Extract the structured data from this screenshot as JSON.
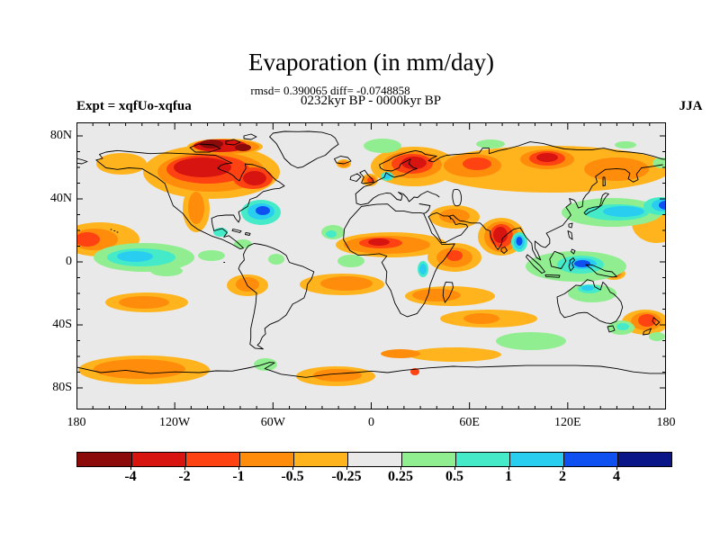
{
  "figure": {
    "title": "Evaporation (in mm/day)",
    "stats_line": "rmsd= 0.390065 diff= -0.0748858",
    "period_line": "0232kyr BP - 0000kyr BP",
    "experiment_label": "Expt = xqfUo-xqfua",
    "season_label": "JJA"
  },
  "axes": {
    "lat_labels": [
      {
        "label": "80N",
        "lat": 80
      },
      {
        "label": "40N",
        "lat": 40
      },
      {
        "label": "0",
        "lat": 0
      },
      {
        "label": "40S",
        "lat": -40
      },
      {
        "label": "80S",
        "lat": -80
      }
    ],
    "lon_labels": [
      {
        "label": "180",
        "lon": -180
      },
      {
        "label": "120W",
        "lon": -120
      },
      {
        "label": "60W",
        "lon": -60
      },
      {
        "label": "0",
        "lon": 0
      },
      {
        "label": "60E",
        "lon": 60
      },
      {
        "label": "120E",
        "lon": 120
      },
      {
        "label": "180",
        "lon": 180
      }
    ]
  },
  "map": {
    "background": "#e9e9e9",
    "coastline_color": "#000000",
    "frame_color": "#000000"
  },
  "colorbar": {
    "colors": [
      "#8b0a0a",
      "#d81410",
      "#ff4212",
      "#ff8c0a",
      "#ffb41e",
      "#e9e9e9",
      "#90ee90",
      "#45ebc8",
      "#29cdf0",
      "#0e50f0",
      "#0a1687"
    ],
    "boundary_labels": [
      "-4",
      "-2",
      "-1",
      "-0.5",
      "-0.25",
      "0.25",
      "0.5",
      "1",
      "2",
      "4"
    ]
  },
  "chart_data": {
    "type": "heatmap",
    "subtype": "filled-contour world map of anomalies, equirectangular projection",
    "title": "Evaporation (in mm/day)",
    "units": "mm/day",
    "season": "JJA",
    "experiment": "xqfUo-xqfua",
    "comparison": "0232kyr BP - 0000kyr BP",
    "rmsd": 0.390065,
    "diff": -0.0748858,
    "contour_levels": [
      -4,
      -2,
      -1,
      -0.5,
      -0.25,
      0.25,
      0.5,
      1,
      2,
      4
    ],
    "palette": [
      "#8b0a0a",
      "#d81410",
      "#ff4212",
      "#ff8c0a",
      "#ffb41e",
      "#e9e9e9",
      "#90ee90",
      "#45ebc8",
      "#29cdf0",
      "#0e50f0",
      "#0a1687"
    ],
    "lon_range": [
      -180,
      180
    ],
    "lat_range": [
      -90,
      90
    ],
    "x_tick_labels": [
      "180",
      "120W",
      "60W",
      "0",
      "60E",
      "120E",
      "180"
    ],
    "y_tick_labels": [
      "80N",
      "40N",
      "0",
      "40S",
      "80S"
    ],
    "legend_position": "bottom horizontal colorbar",
    "notable_negative_anomalies": [
      "Canada / Canadian Arctic (down to -2 and below)",
      "Scandinavia and northwest Russia (-1 to -2)",
      "broad Siberia band (-0.25 to -1)",
      "India (-1 to -2)",
      "Sahel band across North Africa (-0.5 to -2)",
      "Horn of Africa / Arabian Sea (-0.5 to -1)",
      "Middle East (-0.25 to -0.5)",
      "subtropical Northeast Pacific (-0.25 to -1)",
      "central US / Mexico band (-0.25 to -0.5)",
      "tropical South Atlantic band (-0.25 to -0.5)",
      "southern Indian Ocean bands (-0.25 to -0.5)",
      "Southern Ocean Pacific and Atlantic sectors (-0.25 to -0.5)",
      "Tasman Sea east of Australia (-0.5 to -1)",
      "United Kingdom spot (-0.5 to -1)"
    ],
    "notable_positive_anomalies": [
      "northwest Atlantic off US east coast (+0.5 to +2)",
      "equatorial central Pacific ITCZ (+0.25 to +1)",
      "East China Sea / Japan band (+0.5 to +2)",
      "Maritime Continent / Indonesia (+0.5 to +2)",
      "Bay of Bengal (+0.5 to +2)",
      "northern Australia (+0.25 to +1)",
      "mid-latitude south Indian Ocean (+0.25)",
      "Greenland Sea and Arctic coastal patches (+0.25)",
      "northwest Pacific near dateline at 35N (+0.5 to +2)"
    ]
  }
}
